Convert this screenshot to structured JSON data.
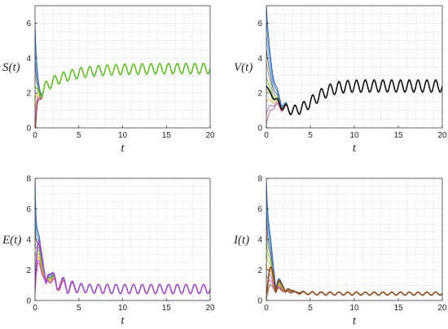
{
  "chart_data": [
    {
      "type": "line",
      "panel": "S",
      "ylabel": "S(t)",
      "xlabel": "t",
      "xlim": [
        0,
        20
      ],
      "ylim": [
        0,
        7
      ],
      "xticks": [
        "0",
        "5",
        "10",
        "15",
        "20"
      ],
      "yticks": [
        "0",
        "2",
        "4",
        "6"
      ],
      "grid": true,
      "initial_values": [
        7.0,
        6.4,
        5.6,
        4.8,
        4.1,
        3.4,
        2.7,
        2.0,
        1.3,
        0.6,
        0.1
      ],
      "equilibrium": 3.4,
      "oscillation_amplitude": 0.3,
      "series": [
        {
          "color": "#66bd2f",
          "values": [
            [
              0,
              3.4
            ],
            [
              1.5,
              2.4
            ],
            [
              5,
              3.1
            ],
            [
              10,
              3.4
            ],
            [
              20,
              3.4
            ]
          ]
        }
      ]
    },
    {
      "type": "line",
      "panel": "V",
      "ylabel": "V(t)",
      "xlabel": "t",
      "xlim": [
        0,
        20
      ],
      "ylim": [
        0,
        7
      ],
      "xticks": [
        "0",
        "5",
        "10",
        "15",
        "20"
      ],
      "yticks": [
        "0",
        "2",
        "4",
        "6"
      ],
      "grid": true,
      "initial_values": [
        7.0,
        6.2,
        5.3,
        4.5,
        3.7,
        2.9,
        2.2,
        1.5,
        0.8,
        0.2
      ],
      "equilibrium": 2.4,
      "oscillation_amplitude": 0.35,
      "series": [
        {
          "color": "#111111",
          "values": [
            [
              0,
              2.4
            ],
            [
              3,
              1.4
            ],
            [
              8,
              2.2
            ],
            [
              20,
              2.4
            ]
          ]
        }
      ]
    },
    {
      "type": "line",
      "panel": "E",
      "ylabel": "E(t)",
      "xlabel": "t",
      "xlim": [
        0,
        20
      ],
      "ylim": [
        0,
        8
      ],
      "xticks": [
        "0",
        "5",
        "10",
        "15",
        "20"
      ],
      "yticks": [
        "0",
        "2",
        "4",
        "6",
        "8"
      ],
      "grid": true,
      "initial_values": [
        8.0,
        7.0,
        6.0,
        5.0,
        4.0,
        3.2,
        2.4,
        1.6,
        0.9,
        0.3
      ],
      "equilibrium": 0.75,
      "oscillation_amplitude": 0.3,
      "series": [
        {
          "color": "#9e4fc9",
          "values": [
            [
              0,
              0.75
            ],
            [
              1,
              4.5
            ],
            [
              3,
              2.0
            ],
            [
              6,
              1.0
            ],
            [
              20,
              0.75
            ]
          ]
        }
      ]
    },
    {
      "type": "line",
      "panel": "I",
      "ylabel": "I(t)",
      "xlabel": "t",
      "xlim": [
        0,
        20
      ],
      "ylim": [
        0,
        8
      ],
      "xticks": [
        "0",
        "5",
        "10",
        "15",
        "20"
      ],
      "yticks": [
        "0",
        "2",
        "4",
        "6",
        "8"
      ],
      "grid": true,
      "initial_values": [
        8.0,
        7.2,
        6.4,
        5.6,
        4.8,
        4.0,
        3.2,
        2.4,
        1.6,
        0.8,
        0.1
      ],
      "equilibrium": 0.45,
      "oscillation_amplitude": 0.1,
      "series": [
        {
          "color": "#8a4a1c",
          "values": [
            [
              0,
              0.45
            ],
            [
              2,
              2.0
            ],
            [
              5,
              0.8
            ],
            [
              20,
              0.45
            ]
          ]
        }
      ]
    }
  ],
  "palette": [
    "#1f4e9c",
    "#2f78c4",
    "#6aa8d8",
    "#4a4a4a",
    "#8c8c8c",
    "#66bd2f",
    "#c7b12a",
    "#e0a820",
    "#9e4fc9",
    "#d1477a",
    "#8a4a1c"
  ]
}
